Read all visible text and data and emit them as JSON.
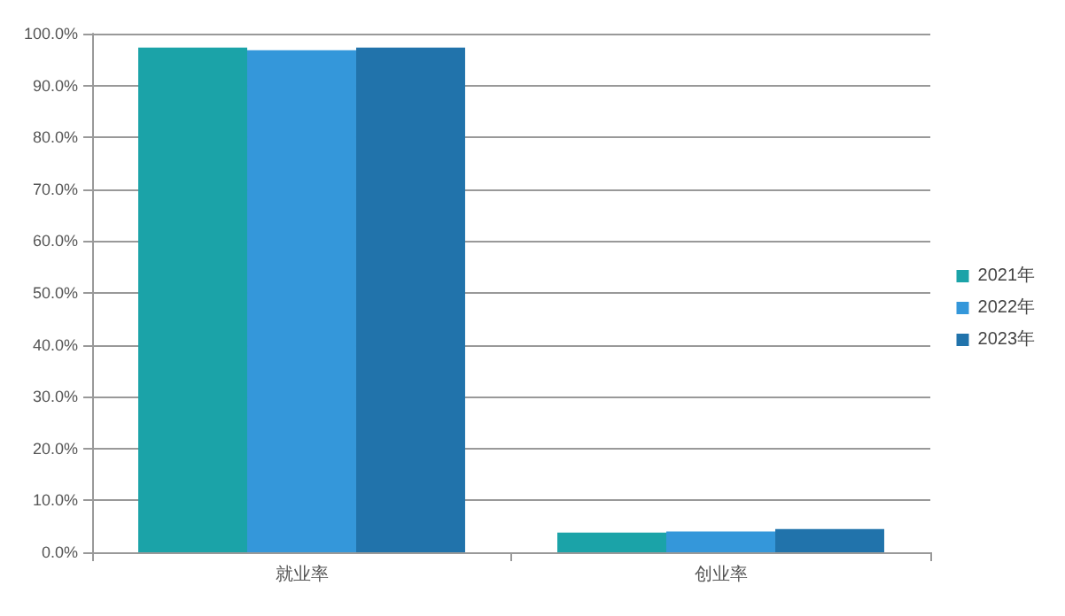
{
  "chart_data": {
    "type": "bar",
    "categories": [
      "就业率",
      "创业率"
    ],
    "series": [
      {
        "name": "2021年",
        "color": "#1ba3a8",
        "values": [
          97.3,
          3.8
        ]
      },
      {
        "name": "2022年",
        "color": "#3497da",
        "values": [
          96.8,
          4.0
        ]
      },
      {
        "name": "2023年",
        "color": "#2173ab",
        "values": [
          97.3,
          4.5
        ]
      }
    ],
    "ylim": [
      0,
      100
    ],
    "yticks": [
      {
        "value": 0,
        "label": "0.0%"
      },
      {
        "value": 10,
        "label": "10.0%"
      },
      {
        "value": 20,
        "label": "20.0%"
      },
      {
        "value": 30,
        "label": "30.0%"
      },
      {
        "value": 40,
        "label": "40.0%"
      },
      {
        "value": 50,
        "label": "50.0%"
      },
      {
        "value": 60,
        "label": "60.0%"
      },
      {
        "value": 70,
        "label": "70.0%"
      },
      {
        "value": 80,
        "label": "80.0%"
      },
      {
        "value": 90,
        "label": "90.0%"
      },
      {
        "value": 100,
        "label": "100.0%"
      }
    ],
    "grid": "y",
    "legend": "right"
  }
}
